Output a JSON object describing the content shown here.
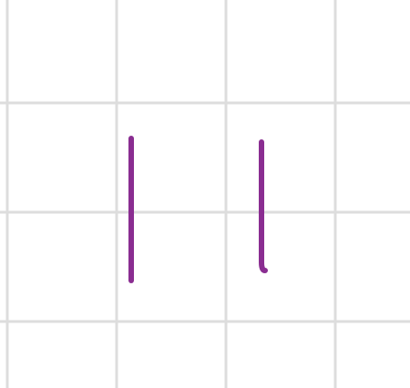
{
  "canvas": {
    "background_color": "#ffffff",
    "grid_color": "#dddddd",
    "stroke_color": "#8a2d91"
  },
  "strokes": [
    {
      "id": "stroke-1",
      "shape": "vertical-line"
    },
    {
      "id": "stroke-2",
      "shape": "vertical-line-with-hook"
    }
  ]
}
